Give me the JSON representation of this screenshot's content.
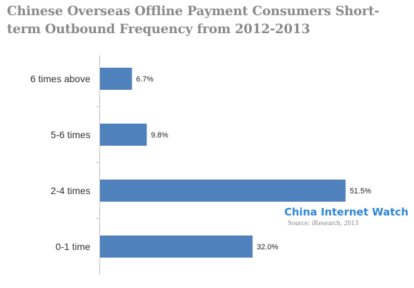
{
  "chart_data": {
    "type": "bar",
    "orientation": "horizontal",
    "title": "Chinese Overseas Offline Payment Consumers Short-term Outbound Frequency from 2012-2013",
    "categories": [
      "6 times above",
      "5-6 times",
      "2-4 times",
      "0-1 time"
    ],
    "values": [
      6.7,
      9.8,
      51.5,
      32.0
    ],
    "value_labels": [
      "6.7%",
      "9.8%",
      "51.5%",
      "32.0%"
    ],
    "xlim": [
      0,
      55
    ],
    "grid": false,
    "color": "#4f81bd"
  },
  "watermark": {
    "brand": "China Internet Watch",
    "source": "Source: iResearch, 2013"
  }
}
